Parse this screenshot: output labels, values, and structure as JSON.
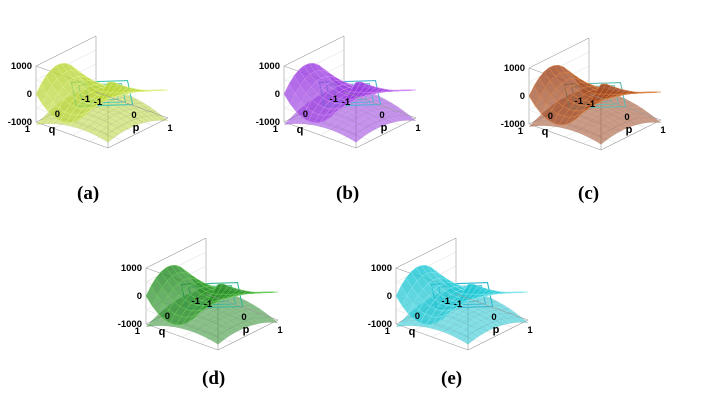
{
  "figure": {
    "panels": [
      {
        "id": "a",
        "caption": "(a)",
        "surface_color": "#b8d63a",
        "surface_edge_color": "#e4f08a",
        "floor_color": "#43c7b4",
        "z_ticks": [
          "1000",
          "0",
          "-1000"
        ],
        "q_ticks": [
          "1",
          "0",
          "-1"
        ],
        "p_ticks": [
          "-1",
          "0",
          "1"
        ],
        "xlabel": "p",
        "ylabel": "q"
      },
      {
        "id": "b",
        "caption": "(b)",
        "surface_color": "#9a3ee0",
        "surface_edge_color": "#d28cf4",
        "floor_color": "#4ab3d6",
        "z_ticks": [
          "1000",
          "0",
          "-1000"
        ],
        "q_ticks": [
          "1",
          "0",
          "-1"
        ],
        "p_ticks": [
          "-1",
          "0",
          "1"
        ],
        "xlabel": "p",
        "ylabel": "q"
      },
      {
        "id": "c",
        "caption": "(c)",
        "surface_color": "#a14a25",
        "surface_edge_color": "#e08a4a",
        "floor_color": "#5fbdb3",
        "z_ticks": [
          "1000",
          "0",
          "-1000"
        ],
        "q_ticks": [
          "1",
          "0",
          "-1"
        ],
        "p_ticks": [
          "-1",
          "0",
          "1"
        ],
        "xlabel": "p",
        "ylabel": "q"
      },
      {
        "id": "d",
        "caption": "(d)",
        "surface_color": "#2c8f2c",
        "surface_edge_color": "#6fcf5f",
        "floor_color": "#36b89a",
        "z_ticks": [
          "1000",
          "0",
          "-1000"
        ],
        "q_ticks": [
          "1",
          "0",
          "-1"
        ],
        "p_ticks": [
          "-1",
          "0",
          "1"
        ],
        "xlabel": "p",
        "ylabel": "q"
      },
      {
        "id": "e",
        "caption": "(e)",
        "surface_color": "#1fc7d4",
        "surface_edge_color": "#8ae8ee",
        "floor_color": "#2fb7cf",
        "z_ticks": [
          "1000",
          "0",
          "-1000"
        ],
        "q_ticks": [
          "1",
          "0",
          "-1"
        ],
        "p_ticks": [
          "-1",
          "0",
          "1"
        ],
        "xlabel": "p",
        "ylabel": "q"
      }
    ]
  }
}
